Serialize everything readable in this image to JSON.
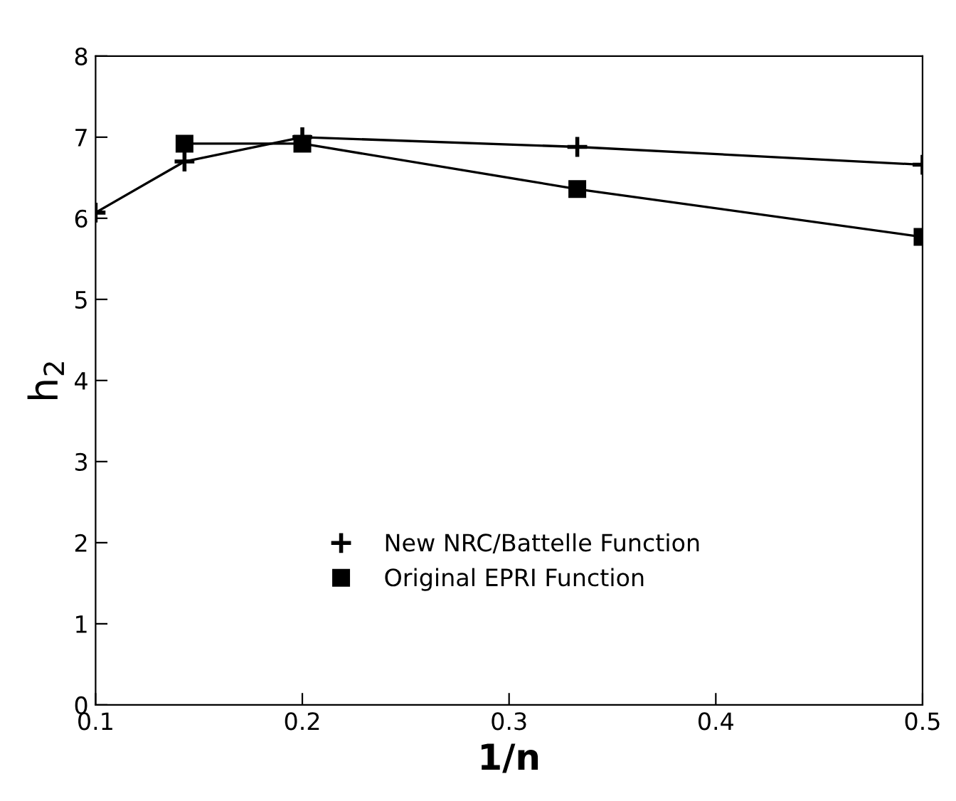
{
  "chart_data": {
    "type": "line",
    "xlabel": "1/n",
    "ylabel": "h$_{2}$",
    "xlim": [
      0.1,
      0.5
    ],
    "ylim": [
      0,
      8
    ],
    "xticks": [
      {
        "value": 0.1,
        "label": "0.1"
      },
      {
        "value": 0.2,
        "label": "0.2"
      },
      {
        "value": 0.3,
        "label": "0.3"
      },
      {
        "value": 0.4,
        "label": "0.4"
      },
      {
        "value": 0.5,
        "label": "0.5"
      }
    ],
    "yticks": [
      0,
      1,
      2,
      3,
      4,
      5,
      6,
      7,
      8
    ],
    "grid": false,
    "legend": "bottom",
    "line_style": "solid",
    "series": [
      {
        "name": "New NRC/Battelle Function",
        "color": "#000000",
        "marker": "cross",
        "x": [
          0.1,
          0.143,
          0.2,
          0.333,
          0.5
        ],
        "values": [
          6.07,
          6.7,
          7.0,
          6.88,
          6.66
        ]
      },
      {
        "name": "Original EPRI Function",
        "color": "#000000",
        "marker": "square",
        "x": [
          0.143,
          0.2,
          0.333,
          0.5
        ],
        "values": [
          6.92,
          6.92,
          6.36,
          5.77
        ]
      }
    ]
  }
}
